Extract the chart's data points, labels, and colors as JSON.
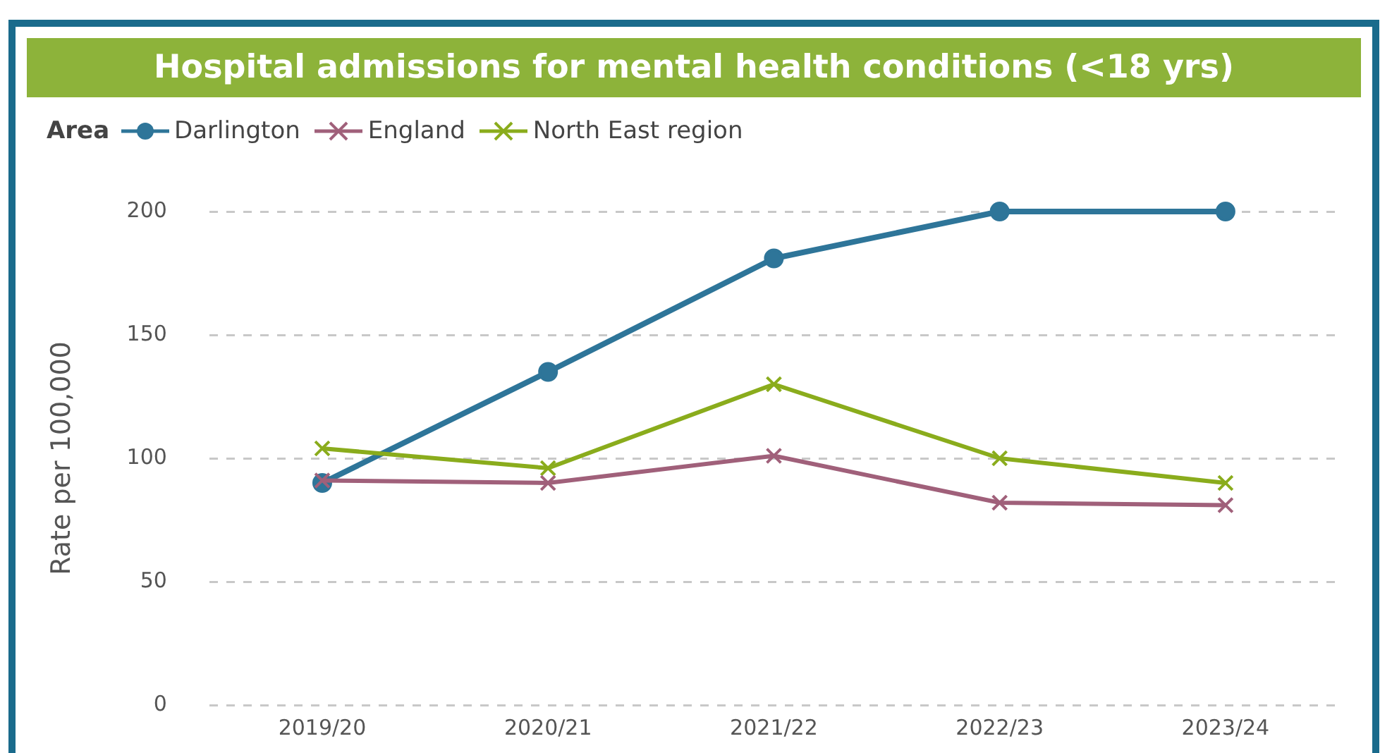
{
  "chart_data": {
    "type": "line",
    "title": "Hospital admissions for mental health conditions (<18 yrs)",
    "ylabel": "Rate per 100,000",
    "legend_title": "Area",
    "legend": "top left",
    "grid": "y",
    "line_style": "solid",
    "categories": [
      "2019/20",
      "2020/21",
      "2021/22",
      "2022/23",
      "2023/24"
    ],
    "ylim": [
      0,
      200
    ],
    "yticks": [
      0,
      50,
      100,
      150,
      200
    ],
    "series": [
      {
        "name": "Darlington",
        "color": "#2e7599",
        "marker": "circle",
        "values": [
          90,
          135,
          181,
          200,
          200
        ]
      },
      {
        "name": "England",
        "color": "#a0607a",
        "marker": "cross",
        "values": [
          91,
          90,
          101,
          82,
          81
        ]
      },
      {
        "name": "North East region",
        "color": "#8aac1c",
        "marker": "cross",
        "values": [
          104,
          96,
          130,
          100,
          90
        ]
      }
    ]
  }
}
